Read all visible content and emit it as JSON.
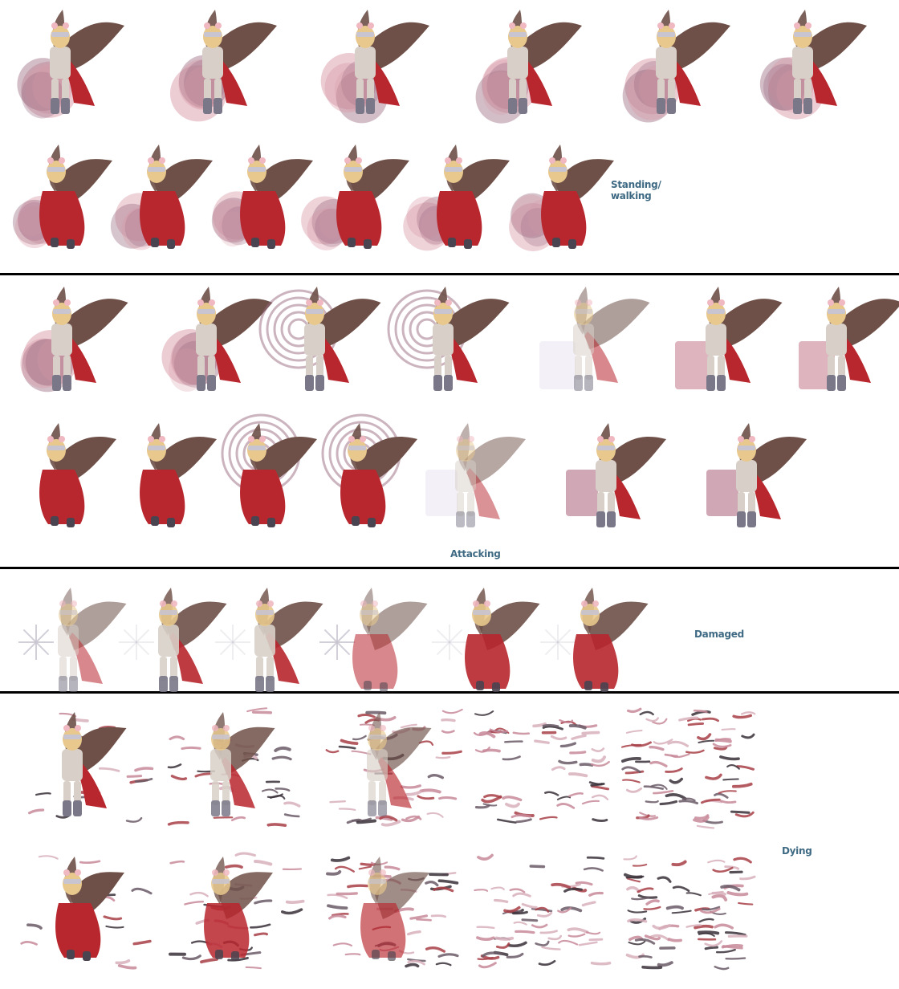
{
  "sheet": {
    "background": "#ffffff",
    "divider_color": "#000000",
    "label_color": "#3f6a84"
  },
  "sections": [
    {
      "id": "standing",
      "label_lines": [
        "Standing/",
        "walking"
      ],
      "rows": [
        {
          "facing": "front",
          "count": 6
        },
        {
          "facing": "back",
          "count": 6
        }
      ]
    },
    {
      "id": "attacking",
      "label_lines": [
        "Attacking"
      ],
      "rows": [
        {
          "facing": "front",
          "count": 7
        },
        {
          "facing": "back",
          "count": 7
        }
      ]
    },
    {
      "id": "damaged",
      "label_lines": [
        "Damaged"
      ],
      "rows": [
        {
          "facing": "mixed",
          "count": 6
        }
      ]
    },
    {
      "id": "dying",
      "label_lines": [
        "Dying"
      ],
      "rows": [
        {
          "facing": "front",
          "count": 5
        },
        {
          "facing": "back",
          "count": 5
        }
      ]
    }
  ],
  "palette": {
    "wing": "#6e5048",
    "cape": "#b8262e",
    "armor": "#d8d0c8",
    "hair": "#e8c88c",
    "flame": "#d89aa8",
    "boots": "#7a7888"
  }
}
